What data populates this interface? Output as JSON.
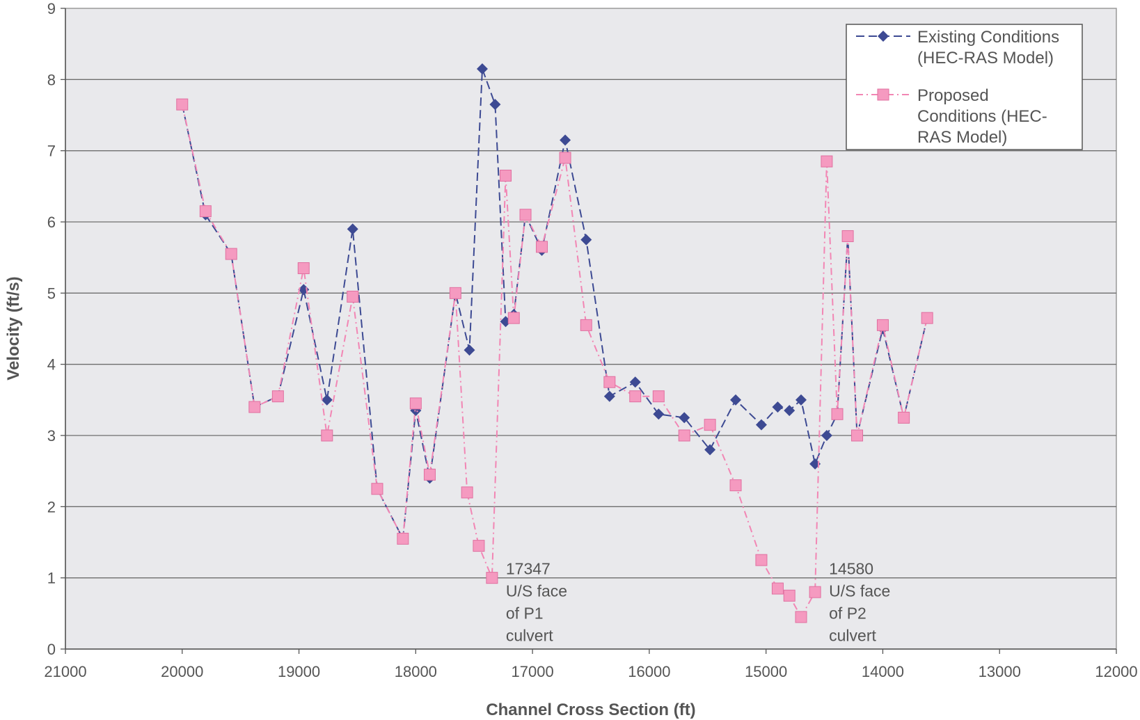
{
  "chart_data": {
    "type": "line",
    "title": "",
    "xlabel": "Channel Cross Section (ft)",
    "ylabel": "Velocity (ft/s)",
    "xlim": [
      21000,
      12000
    ],
    "ylim": [
      0,
      9
    ],
    "x_reversed": true,
    "x_ticks": [
      "21000",
      "20000",
      "19000",
      "18000",
      "17000",
      "16000",
      "15000",
      "14000",
      "13000",
      "12000"
    ],
    "y_ticks": [
      "0",
      "1",
      "2",
      "3",
      "4",
      "5",
      "6",
      "7",
      "8",
      "9"
    ],
    "grid": "horizontal",
    "legend_position": "top-right",
    "series": [
      {
        "name": "Existing Conditions (HEC-RAS Model)",
        "legend_lines": [
          "Existing Conditions",
          "(HEC-RAS Model)"
        ],
        "color": "#3d4a93",
        "marker": "diamond",
        "dash": "long-dash",
        "x": [
          20000,
          19800,
          19580,
          19380,
          19180,
          18960,
          18760,
          18540,
          18330,
          18110,
          18000,
          17880,
          17660,
          17540,
          17430,
          17320,
          17230,
          17160,
          17060,
          16920,
          16720,
          16540,
          16340,
          16120,
          15920,
          15700,
          15480,
          15260,
          15040,
          14900,
          14800,
          14700,
          14580,
          14480,
          14390,
          14300,
          14220,
          14000,
          13820,
          13620
        ],
        "y": [
          7.65,
          6.1,
          5.55,
          3.4,
          3.55,
          5.05,
          3.5,
          5.9,
          2.25,
          1.55,
          3.35,
          2.4,
          5.0,
          4.2,
          8.15,
          7.65,
          4.6,
          4.7,
          6.1,
          5.6,
          7.15,
          5.75,
          3.55,
          3.75,
          3.3,
          3.25,
          2.8,
          3.5,
          3.15,
          3.4,
          3.35,
          3.5,
          2.6,
          3.0,
          3.3,
          5.8,
          3.0,
          4.5,
          3.25,
          4.65
        ]
      },
      {
        "name": "Proposed Conditions (HEC-RAS Model)",
        "legend_lines": [
          "Proposed",
          "Conditions (HEC-",
          "RAS Model)"
        ],
        "color": "#f286b4",
        "marker": "square",
        "dash": "dash-dot",
        "x": [
          20000,
          19800,
          19580,
          19380,
          19180,
          18960,
          18760,
          18540,
          18330,
          18110,
          18000,
          17880,
          17660,
          17560,
          17460,
          17347,
          17230,
          17160,
          17060,
          16920,
          16720,
          16540,
          16340,
          16120,
          15920,
          15700,
          15480,
          15260,
          15040,
          14900,
          14800,
          14700,
          14580,
          14480,
          14390,
          14300,
          14220,
          14000,
          13820,
          13620
        ],
        "y": [
          7.65,
          6.15,
          5.55,
          3.4,
          3.55,
          5.35,
          3.0,
          4.95,
          2.25,
          1.55,
          3.45,
          2.45,
          5.0,
          2.2,
          1.45,
          1.0,
          6.65,
          4.65,
          6.1,
          5.65,
          6.9,
          4.55,
          3.75,
          3.55,
          3.55,
          3.0,
          3.15,
          2.3,
          1.25,
          0.85,
          0.75,
          0.45,
          0.8,
          6.85,
          3.3,
          5.8,
          3.0,
          4.55,
          3.25,
          4.65
        ]
      }
    ],
    "annotations": [
      {
        "x": 17347,
        "y": 1.0,
        "lines": [
          "17347",
          "U/S face",
          "of P1",
          "culvert"
        ]
      },
      {
        "x": 14580,
        "y": 1.0,
        "lines": [
          "14580",
          "U/S face",
          "of P2",
          "culvert"
        ]
      }
    ]
  }
}
